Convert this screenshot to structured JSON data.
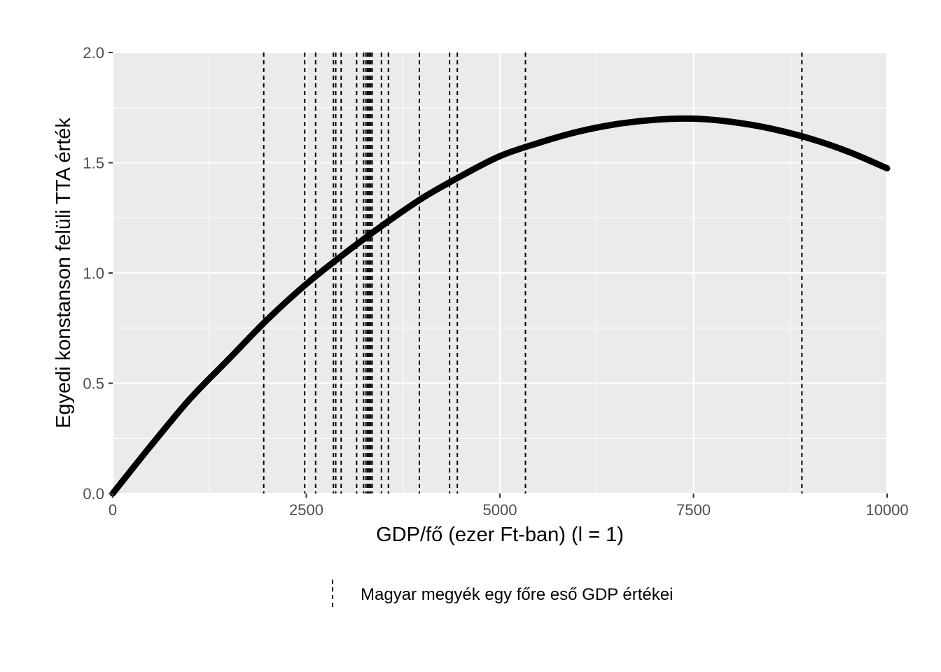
{
  "chart_data": {
    "type": "line",
    "xlabel": "GDP/fő (ezer Ft-ban) (l = 1)",
    "ylabel": "Egyedi konstanson felüli TTA érték",
    "xlim": [
      0,
      10000
    ],
    "ylim": [
      0,
      2
    ],
    "x_ticks": [
      0,
      2500,
      5000,
      7500,
      10000
    ],
    "x_tick_labels": [
      "0",
      "2500",
      "5000",
      "7500",
      "10000"
    ],
    "y_ticks": [
      0.0,
      0.5,
      1.0,
      1.5,
      2.0
    ],
    "y_tick_labels": [
      "0.0",
      "0.5",
      "1.0",
      "1.5",
      "2.0"
    ],
    "grid": true,
    "series": [
      {
        "name": "curve",
        "x": [
          0,
          500,
          1000,
          1500,
          2000,
          2500,
          3000,
          3500,
          4000,
          4500,
          5000,
          5500,
          6000,
          6500,
          7000,
          7500,
          8000,
          8500,
          9000,
          9500,
          10000
        ],
        "y": [
          0.0,
          0.22,
          0.43,
          0.61,
          0.79,
          0.95,
          1.09,
          1.22,
          1.34,
          1.44,
          1.53,
          1.59,
          1.64,
          1.675,
          1.695,
          1.7,
          1.685,
          1.655,
          1.61,
          1.55,
          1.475
        ]
      }
    ],
    "vlines": [
      1950,
      2480,
      2620,
      2850,
      2880,
      2950,
      3150,
      3240,
      3270,
      3290,
      3310,
      3330,
      3350,
      3470,
      3560,
      3960,
      4350,
      4450,
      5330,
      8900
    ],
    "legend": {
      "position": "bottom",
      "label": "Magyar megyék egy főre eső GDP értékei",
      "linestyle": "dashed"
    },
    "colors": {
      "panel_background": "#ebebeb",
      "grid": "#ffffff",
      "line": "#000000",
      "tick_text": "#4d4d4d"
    }
  }
}
